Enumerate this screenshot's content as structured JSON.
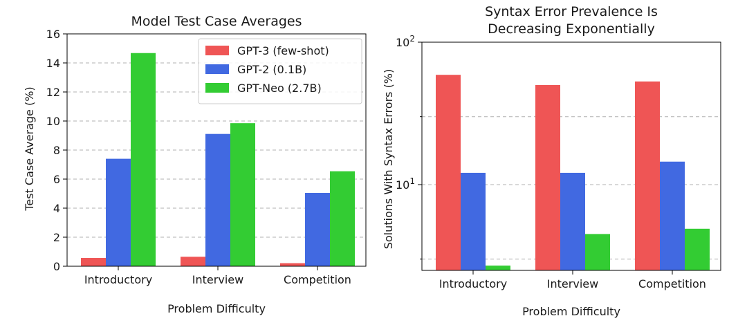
{
  "chart_data": [
    {
      "type": "bar",
      "title": "Model Test Case Averages",
      "xlabel": "Problem Difficulty",
      "ylabel": "Test Case Average (%)",
      "categories": [
        "Introductory",
        "Interview",
        "Competition"
      ],
      "ylim": [
        0,
        16
      ],
      "yticks": [
        "0",
        "2",
        "4",
        "6",
        "8",
        "10",
        "12",
        "14",
        "16"
      ],
      "grid": true,
      "legend_position": "top-right",
      "series": [
        {
          "name": "GPT-3 (few-shot)",
          "color": "#ef5555",
          "values": [
            0.57,
            0.65,
            0.21
          ]
        },
        {
          "name": "GPT-2 (0.1B)",
          "color": "#4169e1",
          "values": [
            7.4,
            9.11,
            5.05
          ]
        },
        {
          "name": "GPT-Neo (2.7B)",
          "color": "#33cc33",
          "values": [
            14.68,
            9.85,
            6.54
          ]
        }
      ]
    },
    {
      "type": "bar",
      "title": "Syntax Error Prevalence Is\nDecreasing Exponentially",
      "title_lines": [
        "Syntax Error Prevalence Is",
        "Decreasing Exponentially"
      ],
      "xlabel": "Problem Difficulty",
      "ylabel": "Solutions With Syntax Errors (%)",
      "categories": [
        "Introductory",
        "Interview",
        "Competition"
      ],
      "yscale": "log",
      "ylim": [
        2.5,
        100
      ],
      "yticks": [
        "10¹",
        "10²"
      ],
      "grid": true,
      "series": [
        {
          "name": "GPT-3 (few-shot)",
          "color": "#ef5555",
          "values": [
            59,
            50,
            53
          ]
        },
        {
          "name": "GPT-2 (0.1B)",
          "color": "#4169e1",
          "values": [
            12.1,
            12.1,
            14.5
          ]
        },
        {
          "name": "GPT-Neo (2.7B)",
          "color": "#33cc33",
          "values": [
            2.7,
            4.5,
            4.9
          ]
        }
      ]
    }
  ]
}
